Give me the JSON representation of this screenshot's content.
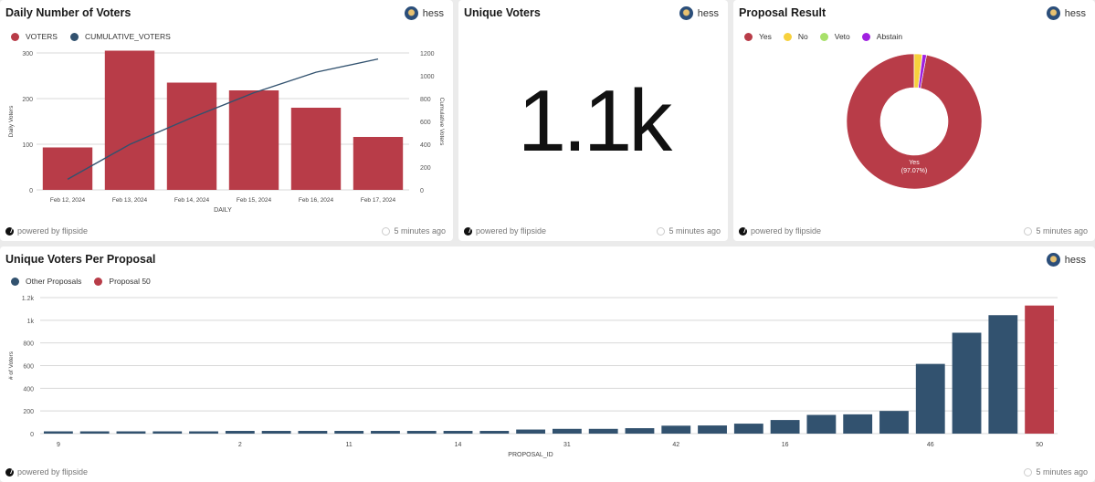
{
  "author": "hess",
  "footer": {
    "powered": "powered by flipside",
    "updated": "5 minutes ago"
  },
  "panels": {
    "daily": {
      "title": "Daily Number of Voters"
    },
    "unique": {
      "title": "Unique Voters",
      "value": "1.1k"
    },
    "result": {
      "title": "Proposal Result"
    },
    "per_proposal": {
      "title": "Unique Voters Per Proposal"
    }
  },
  "colors": {
    "red": "#b83c48",
    "navy": "#32526f",
    "yellow": "#f7d13d",
    "green": "#a8e06a",
    "purple": "#a020e0"
  },
  "chart_data": [
    {
      "type": "bar",
      "title": "Daily Number of Voters",
      "categories": [
        "Feb 12, 2024",
        "Feb 13, 2024",
        "Feb 14, 2024",
        "Feb 15, 2024",
        "Feb 16, 2024",
        "Feb 17, 2024"
      ],
      "series": [
        {
          "name": "VOTERS",
          "type": "bar",
          "axis": "left",
          "values": [
            93,
            305,
            235,
            218,
            180,
            116
          ]
        },
        {
          "name": "CUMULATIVE_VOTERS",
          "type": "line",
          "axis": "right",
          "values": [
            93,
            398,
            633,
            851,
            1031,
            1147
          ]
        }
      ],
      "xlabel": "DAILY",
      "ylabel": "Daily Voters",
      "y2label": "Cumulative Voters",
      "ylim": [
        0,
        300
      ],
      "yticks": [
        0,
        100,
        200,
        300
      ],
      "y2lim": [
        0,
        1200
      ],
      "y2ticks": [
        0,
        200,
        400,
        600,
        800,
        1000,
        1200
      ],
      "legend": "top-left",
      "grid": true
    },
    {
      "type": "pie",
      "title": "Proposal Result",
      "labels": [
        "Yes",
        "No",
        "Veto",
        "Abstain"
      ],
      "values": [
        97.07,
        1.9,
        0.06,
        0.97
      ],
      "center_label": "Yes",
      "center_value": "(97.07%)",
      "legend": "top-left"
    },
    {
      "type": "bar",
      "title": "Unique Voters Per Proposal",
      "categories": [
        "9",
        "",
        "",
        "",
        "",
        "2",
        "",
        "",
        "11",
        "",
        "",
        "14",
        "",
        "",
        "31",
        "",
        "",
        "42",
        "",
        "",
        "16",
        "",
        "",
        "",
        "46",
        "",
        "",
        "50"
      ],
      "series": [
        {
          "name": "Other Proposals",
          "values": [
            20,
            20,
            20,
            20,
            20,
            24,
            24,
            24,
            24,
            24,
            24,
            24,
            24,
            36,
            42,
            42,
            48,
            70,
            72,
            88,
            120,
            165,
            170,
            200,
            615,
            890,
            1045,
            null
          ]
        },
        {
          "name": "Proposal 50",
          "values": [
            null,
            null,
            null,
            null,
            null,
            null,
            null,
            null,
            null,
            null,
            null,
            null,
            null,
            null,
            null,
            null,
            null,
            null,
            null,
            null,
            null,
            null,
            null,
            null,
            null,
            null,
            null,
            1130
          ]
        }
      ],
      "xlabel": "PROPOSAL_ID",
      "ylabel": "# of Voters",
      "ylim": [
        0,
        1200
      ],
      "yticks": [
        "0",
        "200",
        "400",
        "600",
        "800",
        "1k",
        "1.2k"
      ],
      "legend": "top-left",
      "grid": true
    }
  ]
}
